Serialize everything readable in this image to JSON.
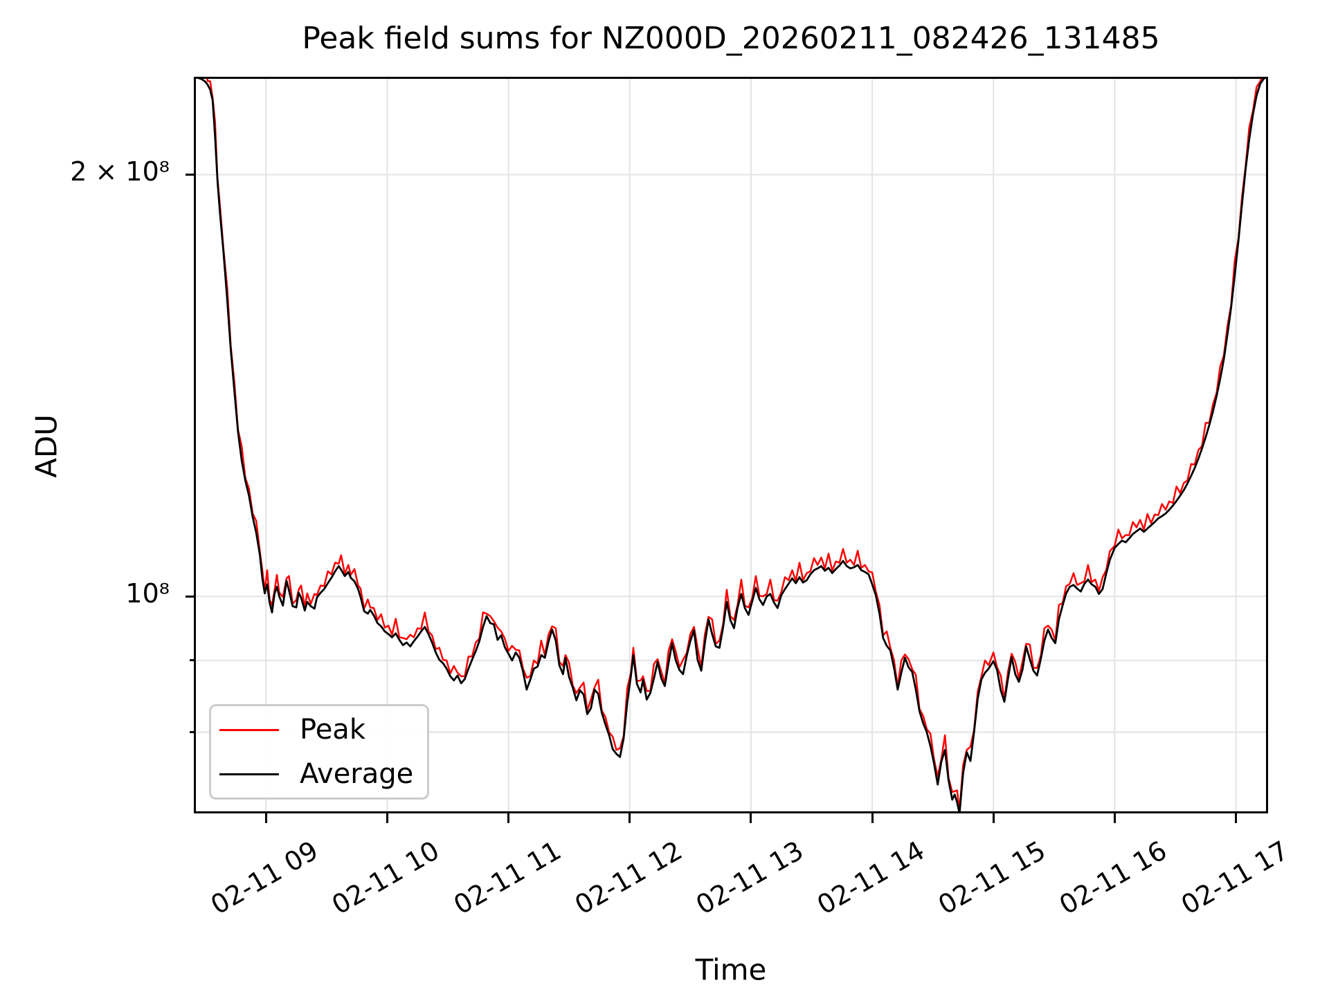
{
  "title": "Peak field sums for NZ000D_20260211_082426_131485",
  "axes": {
    "x_label": "Time",
    "y_label": "ADU",
    "grid_color": "#e3e3e3",
    "spine_color": "#000000",
    "x_ticks": [
      {
        "hour": 9,
        "label": "02-11 09"
      },
      {
        "hour": 10,
        "label": "02-11 10"
      },
      {
        "hour": 11,
        "label": "02-11 11"
      },
      {
        "hour": 12,
        "label": "02-11 12"
      },
      {
        "hour": 13,
        "label": "02-11 13"
      },
      {
        "hour": 14,
        "label": "02-11 14"
      },
      {
        "hour": 15,
        "label": "02-11 15"
      },
      {
        "hour": 16,
        "label": "02-11 16"
      },
      {
        "hour": 17,
        "label": "02-11 17"
      }
    ],
    "y_ticks": [
      {
        "v8": 2.0,
        "label": "2 × 10⁸",
        "major": true
      },
      {
        "v8": 1.0,
        "label": "10⁸",
        "major": true
      },
      {
        "v8": 0.9,
        "label": "",
        "major": false
      },
      {
        "v8": 0.8,
        "label": "",
        "major": false
      }
    ]
  },
  "legend": {
    "items": [
      {
        "label": "Peak",
        "color": "#ff0000"
      },
      {
        "label": "Average",
        "color": "#000000"
      }
    ]
  },
  "chart_data": {
    "type": "line",
    "title": "Peak field sums for NZ000D_20260211_082426_131485",
    "xlabel": "Time",
    "ylabel": "ADU",
    "y_scale": "log",
    "y_unit_multiplier": 100000000.0,
    "xlim_hours": [
      8.405,
      17.265
    ],
    "ylim_1e8": [
      0.7,
      2.349
    ],
    "legend_position": "lower left",
    "grid": "both",
    "x_hours": [
      8.41,
      8.44,
      8.47,
      8.5,
      8.52,
      8.54,
      8.56,
      8.58,
      8.6,
      8.62,
      8.65,
      8.68,
      8.71,
      8.74,
      8.77,
      8.8,
      8.83,
      8.86,
      8.89,
      8.92,
      8.95,
      8.97,
      8.99,
      9.01,
      9.03,
      9.05,
      9.07,
      9.09,
      9.11,
      9.14,
      9.17,
      9.19,
      9.22,
      9.25,
      9.27,
      9.29,
      9.32,
      9.34,
      9.37,
      9.4,
      9.42,
      9.45,
      9.48,
      9.51,
      9.54,
      9.57,
      9.6,
      9.62,
      9.65,
      9.68,
      9.7,
      9.73,
      9.76,
      9.78,
      9.81,
      9.84,
      9.86,
      9.89,
      9.92,
      9.95,
      9.98,
      10.01,
      10.04,
      10.07,
      10.1,
      10.13,
      10.16,
      10.19,
      10.22,
      10.25,
      10.28,
      10.31,
      10.34,
      10.37,
      10.4,
      10.43,
      10.46,
      10.49,
      10.52,
      10.55,
      10.58,
      10.61,
      10.64,
      10.67,
      10.7,
      10.73,
      10.76,
      10.79,
      10.82,
      10.85,
      10.88,
      10.91,
      10.94,
      10.97,
      11.0,
      11.03,
      11.06,
      11.09,
      11.12,
      11.15,
      11.18,
      11.21,
      11.24,
      11.27,
      11.3,
      11.33,
      11.36,
      11.39,
      11.42,
      11.45,
      11.47,
      11.5,
      11.53,
      11.56,
      11.59,
      11.62,
      11.65,
      11.68,
      11.71,
      11.74,
      11.77,
      11.8,
      11.83,
      11.86,
      11.89,
      11.92,
      11.95,
      11.98,
      12.01,
      12.03,
      12.06,
      12.09,
      12.11,
      12.14,
      12.17,
      12.2,
      12.23,
      12.26,
      12.29,
      12.32,
      12.35,
      12.38,
      12.41,
      12.44,
      12.47,
      12.5,
      12.53,
      12.56,
      12.59,
      12.62,
      12.65,
      12.68,
      12.71,
      12.74,
      12.77,
      12.8,
      12.83,
      12.86,
      12.89,
      12.92,
      12.95,
      12.98,
      13.01,
      13.04,
      13.07,
      13.1,
      13.13,
      13.16,
      13.19,
      13.22,
      13.25,
      13.28,
      13.31,
      13.34,
      13.37,
      13.4,
      13.43,
      13.46,
      13.49,
      13.52,
      13.55,
      13.58,
      13.61,
      13.64,
      13.67,
      13.7,
      13.73,
      13.76,
      13.79,
      13.82,
      13.85,
      13.88,
      13.91,
      13.94,
      13.97,
      14.0,
      14.03,
      14.06,
      14.09,
      14.12,
      14.15,
      14.18,
      14.21,
      14.24,
      14.27,
      14.3,
      14.33,
      14.36,
      14.39,
      14.42,
      14.45,
      14.48,
      14.51,
      14.54,
      14.57,
      14.6,
      14.63,
      14.66,
      14.68,
      14.7,
      14.72,
      14.75,
      14.78,
      14.81,
      14.84,
      14.87,
      14.9,
      14.93,
      14.96,
      15.0,
      15.03,
      15.06,
      15.09,
      15.12,
      15.15,
      15.18,
      15.21,
      15.24,
      15.27,
      15.3,
      15.33,
      15.36,
      15.39,
      15.42,
      15.45,
      15.48,
      15.51,
      15.54,
      15.57,
      15.6,
      15.63,
      15.66,
      15.69,
      15.72,
      15.75,
      15.78,
      15.81,
      15.84,
      15.87,
      15.9,
      15.93,
      15.96,
      16.0,
      16.03,
      16.06,
      16.09,
      16.12,
      16.15,
      16.18,
      16.21,
      16.24,
      16.27,
      16.3,
      16.33,
      16.36,
      16.39,
      16.42,
      16.45,
      16.48,
      16.51,
      16.54,
      16.57,
      16.6,
      16.63,
      16.66,
      16.69,
      16.72,
      16.75,
      16.78,
      16.81,
      16.84,
      16.87,
      16.9,
      16.93,
      16.96,
      16.99,
      17.02,
      17.05,
      17.08,
      17.11,
      17.14,
      17.17,
      17.2,
      17.23,
      17.26
    ],
    "series": [
      {
        "name": "Peak",
        "color": "#ff0000",
        "linewidth": 2.5,
        "values_1e8": [
          2.358,
          2.373,
          2.352,
          2.377,
          2.332,
          2.332,
          2.269,
          2.181,
          1.988,
          1.903,
          1.769,
          1.663,
          1.509,
          1.42,
          1.315,
          1.28,
          1.215,
          1.194,
          1.146,
          1.132,
          1.076,
          1.044,
          1.009,
          1.044,
          0.994,
          0.986,
          1.009,
          1.036,
          1.006,
          0.999,
          1.03,
          1.034,
          0.988,
          0.994,
          1.011,
          1.018,
          0.983,
          1.005,
          0.988,
          1.004,
          1.002,
          1.018,
          1.017,
          1.042,
          1.037,
          1.057,
          1.055,
          1.07,
          1.038,
          1.053,
          1.036,
          1.046,
          1.018,
          1.013,
          0.98,
          0.995,
          0.982,
          0.981,
          0.962,
          0.971,
          0.95,
          0.953,
          0.939,
          0.964,
          0.935,
          0.934,
          0.932,
          0.939,
          0.935,
          0.949,
          0.948,
          0.974,
          0.944,
          0.938,
          0.917,
          0.919,
          0.901,
          0.9,
          0.881,
          0.892,
          0.882,
          0.877,
          0.877,
          0.906,
          0.906,
          0.927,
          0.933,
          0.974,
          0.972,
          0.968,
          0.96,
          0.95,
          0.944,
          0.933,
          0.914,
          0.922,
          0.916,
          0.915,
          0.888,
          0.875,
          0.877,
          0.9,
          0.895,
          0.93,
          0.908,
          0.939,
          0.952,
          0.949,
          0.898,
          0.892,
          0.908,
          0.897,
          0.864,
          0.853,
          0.861,
          0.868,
          0.829,
          0.844,
          0.861,
          0.872,
          0.829,
          0.82,
          0.8,
          0.794,
          0.777,
          0.779,
          0.795,
          0.86,
          0.882,
          0.919,
          0.87,
          0.871,
          0.877,
          0.856,
          0.856,
          0.895,
          0.902,
          0.884,
          0.867,
          0.914,
          0.932,
          0.913,
          0.89,
          0.901,
          0.911,
          0.94,
          0.951,
          0.919,
          0.89,
          0.939,
          0.967,
          0.963,
          0.925,
          0.93,
          0.955,
          1.011,
          0.968,
          0.962,
          0.986,
          1.028,
          0.985,
          0.982,
          0.997,
          1.034,
          1.001,
          1.0,
          1.004,
          1.028,
          0.994,
          0.993,
          1.007,
          1.032,
          1.027,
          1.044,
          1.026,
          1.057,
          1.027,
          1.039,
          1.042,
          1.065,
          1.053,
          1.066,
          1.047,
          1.073,
          1.043,
          1.059,
          1.057,
          1.081,
          1.057,
          1.062,
          1.053,
          1.078,
          1.048,
          1.053,
          1.042,
          1.04,
          1.008,
          0.986,
          0.938,
          0.944,
          0.919,
          0.9,
          0.862,
          0.9,
          0.909,
          0.902,
          0.887,
          0.879,
          0.831,
          0.822,
          0.804,
          0.798,
          0.765,
          0.744,
          0.765,
          0.796,
          0.742,
          0.725,
          0.726,
          0.727,
          0.704,
          0.758,
          0.777,
          0.781,
          0.803,
          0.855,
          0.876,
          0.9,
          0.893,
          0.912,
          0.89,
          0.878,
          0.844,
          0.884,
          0.91,
          0.898,
          0.874,
          0.899,
          0.925,
          0.924,
          0.889,
          0.889,
          0.907,
          0.949,
          0.953,
          0.947,
          0.93,
          0.986,
          0.989,
          1.017,
          1.021,
          1.039,
          1.019,
          1.022,
          1.025,
          1.053,
          1.024,
          1.028,
          1.009,
          1.032,
          1.044,
          1.077,
          1.087,
          1.116,
          1.1,
          1.106,
          1.106,
          1.13,
          1.12,
          1.134,
          1.116,
          1.145,
          1.128,
          1.144,
          1.143,
          1.164,
          1.153,
          1.169,
          1.166,
          1.198,
          1.185,
          1.205,
          1.21,
          1.243,
          1.242,
          1.272,
          1.28,
          1.33,
          1.33,
          1.371,
          1.397,
          1.459,
          1.486,
          1.56,
          1.614,
          1.736,
          1.8,
          1.928,
          2.03,
          2.162,
          2.221,
          2.31,
          2.331,
          2.37,
          2.36
        ]
      },
      {
        "name": "Average",
        "color": "#000000",
        "linewidth": 2.8,
        "values_1e8": [
          2.349,
          2.345,
          2.34,
          2.33,
          2.318,
          2.3,
          2.26,
          2.13,
          1.98,
          1.88,
          1.76,
          1.63,
          1.5,
          1.4,
          1.31,
          1.25,
          1.21,
          1.18,
          1.14,
          1.11,
          1.07,
          1.03,
          1.005,
          1.02,
          0.99,
          0.974,
          1.004,
          1.016,
          1.0,
          0.985,
          1.026,
          1.01,
          0.984,
          0.982,
          1.006,
          0.998,
          0.977,
          0.991,
          0.984,
          0.98,
          0.998,
          1.006,
          1.012,
          1.022,
          1.031,
          1.042,
          1.051,
          1.045,
          1.034,
          1.041,
          1.031,
          1.025,
          1.012,
          0.999,
          0.976,
          0.972,
          0.978,
          0.969,
          0.957,
          0.952,
          0.944,
          0.94,
          0.935,
          0.941,
          0.931,
          0.923,
          0.927,
          0.921,
          0.929,
          0.936,
          0.944,
          0.951,
          0.94,
          0.927,
          0.912,
          0.901,
          0.896,
          0.888,
          0.877,
          0.871,
          0.878,
          0.867,
          0.873,
          0.888,
          0.901,
          0.914,
          0.929,
          0.951,
          0.968,
          0.957,
          0.955,
          0.931,
          0.938,
          0.92,
          0.91,
          0.9,
          0.912,
          0.904,
          0.884,
          0.858,
          0.872,
          0.888,
          0.891,
          0.908,
          0.904,
          0.928,
          0.947,
          0.93,
          0.893,
          0.88,
          0.904,
          0.876,
          0.861,
          0.843,
          0.857,
          0.851,
          0.824,
          0.832,
          0.858,
          0.852,
          0.826,
          0.81,
          0.796,
          0.778,
          0.772,
          0.768,
          0.792,
          0.84,
          0.878,
          0.908,
          0.866,
          0.854,
          0.872,
          0.844,
          0.853,
          0.874,
          0.898,
          0.874,
          0.863,
          0.896,
          0.926,
          0.9,
          0.886,
          0.88,
          0.907,
          0.929,
          0.946,
          0.901,
          0.885,
          0.926,
          0.963,
          0.94,
          0.921,
          0.919,
          0.95,
          0.991,
          0.962,
          0.949,
          0.982,
          1.004,
          0.981,
          0.97,
          0.992,
          1.014,
          0.995,
          0.986,
          1.0,
          1.004,
          0.99,
          0.981,
          1.002,
          1.012,
          1.021,
          1.03,
          1.022,
          1.032,
          1.023,
          1.027,
          1.037,
          1.044,
          1.047,
          1.051,
          1.043,
          1.048,
          1.039,
          1.046,
          1.052,
          1.06,
          1.051,
          1.047,
          1.049,
          1.053,
          1.044,
          1.041,
          1.037,
          1.02,
          1.002,
          0.972,
          0.934,
          0.922,
          0.915,
          0.889,
          0.858,
          0.882,
          0.904,
          0.89,
          0.883,
          0.858,
          0.828,
          0.812,
          0.8,
          0.782,
          0.76,
          0.734,
          0.762,
          0.777,
          0.739,
          0.716,
          0.722,
          0.713,
          0.7,
          0.748,
          0.774,
          0.763,
          0.8,
          0.845,
          0.872,
          0.882,
          0.888,
          0.899,
          0.886,
          0.857,
          0.841,
          0.874,
          0.905,
          0.88,
          0.869,
          0.887,
          0.921,
          0.902,
          0.885,
          0.878,
          0.902,
          0.93,
          0.947,
          0.934,
          0.926,
          0.963,
          0.985,
          1.005,
          1.016,
          1.019,
          1.013,
          1.008,
          1.021,
          1.028,
          1.02,
          1.016,
          1.004,
          1.012,
          1.038,
          1.062,
          1.083,
          1.09,
          1.096,
          1.093,
          1.1,
          1.108,
          1.113,
          1.118,
          1.112,
          1.118,
          1.124,
          1.13,
          1.137,
          1.141,
          1.146,
          1.153,
          1.161,
          1.17,
          1.18,
          1.191,
          1.204,
          1.219,
          1.235,
          1.254,
          1.275,
          1.299,
          1.325,
          1.355,
          1.39,
          1.43,
          1.477,
          1.538,
          1.608,
          1.695,
          1.793,
          1.905,
          2.02,
          2.12,
          2.208,
          2.278,
          2.322,
          2.342,
          2.349
        ]
      }
    ]
  }
}
